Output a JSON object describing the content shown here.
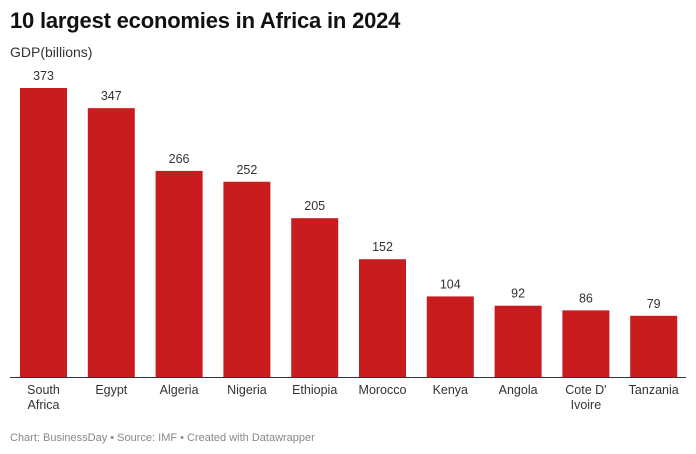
{
  "chart_data": {
    "type": "bar",
    "title": "10 largest economies in Africa in 2024",
    "ylabel": "GDP(billions)",
    "xlabel": "",
    "categories": [
      [
        "South",
        "Africa"
      ],
      [
        "Egypt"
      ],
      [
        "Algeria"
      ],
      [
        "Nigeria"
      ],
      [
        "Ethiopia"
      ],
      [
        "Morocco"
      ],
      [
        "Kenya"
      ],
      [
        "Angola"
      ],
      [
        "Cote D'",
        "Ivoire"
      ],
      [
        "Tanzania"
      ]
    ],
    "values": [
      373,
      347,
      266,
      252,
      205,
      152,
      104,
      92,
      86,
      79
    ],
    "ylim": [
      0,
      373
    ],
    "grid": false,
    "bar_color": "#c91c1e"
  },
  "footer": "Chart: BusinessDay • Source: IMF • Created with Datawrapper"
}
